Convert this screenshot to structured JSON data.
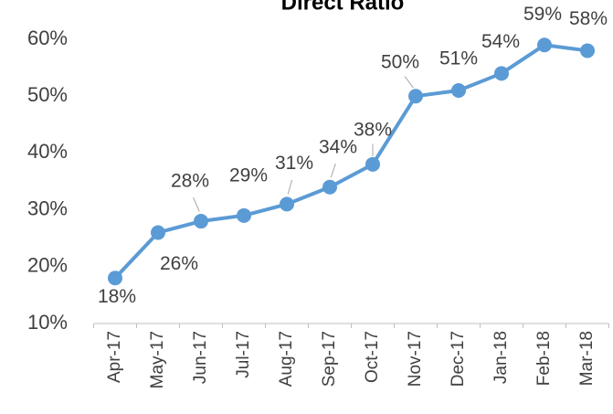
{
  "chart_data": {
    "type": "line",
    "title": "Direct Ratio",
    "categories": [
      "Apr-17",
      "May-17",
      "Jun-17",
      "Jul-17",
      "Aug-17",
      "Sep-17",
      "Oct-17",
      "Nov-17",
      "Dec-17",
      "Jan-18",
      "Feb-18",
      "Mar-18"
    ],
    "series": [
      {
        "color": "#5b9bd5",
        "values": [
          18,
          26,
          28,
          29,
          31,
          34,
          38,
          50,
          51,
          54,
          59,
          58
        ],
        "value_labels": [
          "18%",
          "26%",
          "28%",
          "29%",
          "31%",
          "34%",
          "38%",
          "50%",
          "51%",
          "54%",
          "59%",
          "58%"
        ]
      }
    ],
    "ylim": [
      10,
      60
    ],
    "yticks": [
      {
        "value": 10,
        "label": "10%"
      },
      {
        "value": 20,
        "label": "20%"
      },
      {
        "value": 30,
        "label": "30%"
      },
      {
        "value": 40,
        "label": "40%"
      },
      {
        "value": 50,
        "label": "50%"
      },
      {
        "value": 60,
        "label": "60%"
      }
    ],
    "grid": false
  }
}
